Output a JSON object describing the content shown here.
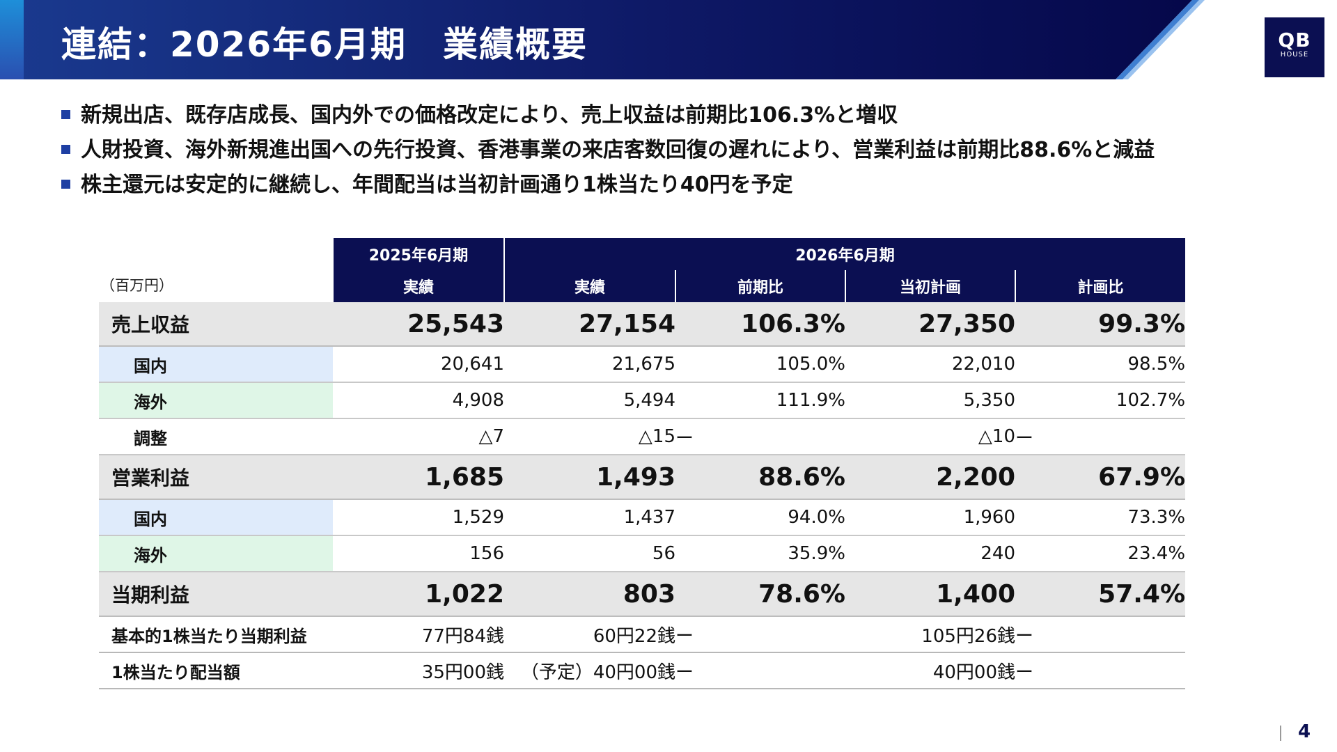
{
  "slide": {
    "title": "連結：2026年6月期　業績概要",
    "logo_top": "QB",
    "logo_bottom": "HOUSE",
    "page_number": "4"
  },
  "bullets": [
    "新規出店、既存店成長、国内外での価格改定により、売上収益は前期比106.3%と増収",
    "人財投資、海外新規進出国への先行投資、香港事業の来店客数回復の遅れにより、営業利益は前期比88.6%と減益",
    "株主還元は安定的に継続し、年間配当は当初計画通り1株当たり40円を予定"
  ],
  "table": {
    "unit": "（百万円）",
    "period_prev": "2025年6月期",
    "period_curr": "2026年6月期",
    "columns": [
      "実績",
      "実績",
      "前期比",
      "当初計画",
      "計画比"
    ],
    "rows": [
      {
        "label": "売上収益",
        "values": [
          "25,543",
          "27,154",
          "106.3%",
          "27,350",
          "99.3%"
        ]
      },
      {
        "label": "国内",
        "values": [
          "20,641",
          "21,675",
          "105.0%",
          "22,010",
          "98.5%"
        ]
      },
      {
        "label": "海外",
        "values": [
          "4,908",
          "5,494",
          "111.9%",
          "5,350",
          "102.7%"
        ]
      },
      {
        "label": "調整",
        "values": [
          "△7",
          "△15",
          "ー",
          "△10",
          "ー"
        ]
      },
      {
        "label": "営業利益",
        "values": [
          "1,685",
          "1,493",
          "88.6%",
          "2,200",
          "67.9%"
        ]
      },
      {
        "label": "国内",
        "values": [
          "1,529",
          "1,437",
          "94.0%",
          "1,960",
          "73.3%"
        ]
      },
      {
        "label": "海外",
        "values": [
          "156",
          "56",
          "35.9%",
          "240",
          "23.4%"
        ]
      },
      {
        "label": "当期利益",
        "values": [
          "1,022",
          "803",
          "78.6%",
          "1,400",
          "57.4%"
        ]
      },
      {
        "label": "基本的1株当たり当期利益",
        "values": [
          "77円84銭",
          "60円22銭",
          "ー",
          "105円26銭",
          "ー"
        ]
      },
      {
        "label": "1株当たり配当額",
        "values": [
          "35円00銭",
          "（予定）40円00銭",
          "ー",
          "40円00銭",
          "ー"
        ]
      }
    ]
  },
  "colors": {
    "navy": "#0b0f52",
    "domestic_tint": "#dfebfb",
    "overseas_tint": "#dff6e7",
    "major_row_bg": "#e6e6e6",
    "bullet_blue": "#1e3fa3"
  }
}
